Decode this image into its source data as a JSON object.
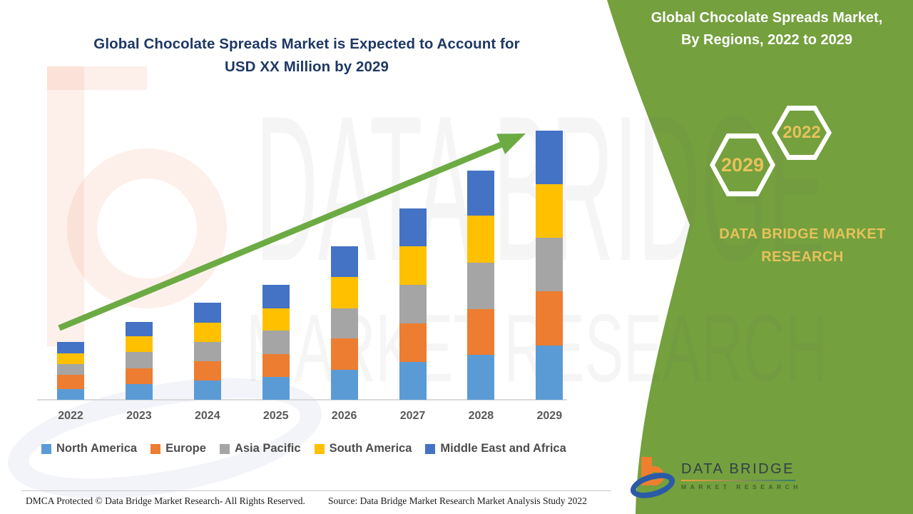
{
  "title": {
    "line1": "Global Chocolate Spreads Market is Expected to Account for",
    "line2": "USD XX Million by 2029"
  },
  "side_panel": {
    "heading_line1": "Global Chocolate Spreads Market,",
    "heading_line2": "By Regions, 2022 to 2029",
    "hexagon_front_label": "2029",
    "hexagon_back_label": "2022",
    "brand_line1": "DATA BRIDGE MARKET",
    "brand_line2": "RESEARCH"
  },
  "watermark": {
    "line1": "DATA BRIDGE",
    "line2": "MARKET RESEARCH"
  },
  "colors": {
    "panel_green": "#74A03E",
    "gold": "#E6C25B",
    "title_navy": "#1F3864",
    "arrow_green": "#6CAB44",
    "axis_text": "#595959",
    "white": "#ffffff"
  },
  "chart_data": {
    "type": "bar",
    "stacked": true,
    "title": "Global Chocolate Spreads Market is Expected to Account for USD XX Million by 2029",
    "subtitle": "Global Chocolate Spreads Market, By Regions, 2022 to 2029",
    "categories": [
      "2022",
      "2023",
      "2024",
      "2025",
      "2026",
      "2027",
      "2028",
      "2029"
    ],
    "series": [
      {
        "name": "North America",
        "color": "#5B9BD5",
        "values": [
          15,
          22,
          27,
          32,
          42,
          53,
          63,
          76
        ]
      },
      {
        "name": "Europe",
        "color": "#ED7D31",
        "values": [
          20,
          22,
          27,
          32,
          44,
          54,
          64,
          76
        ]
      },
      {
        "name": "Asia Pacific",
        "color": "#A5A5A5",
        "values": [
          15,
          23,
          27,
          33,
          42,
          54,
          65,
          75
        ]
      },
      {
        "name": "South America",
        "color": "#FFC000",
        "values": [
          15,
          22,
          27,
          31,
          44,
          54,
          66,
          75
        ]
      },
      {
        "name": "Middle East and Africa",
        "color": "#4472C4",
        "values": [
          16,
          20,
          28,
          33,
          43,
          53,
          63,
          75
        ]
      }
    ],
    "totals_estimated": [
      81,
      109,
      136,
      161,
      215,
      268,
      321,
      377
    ],
    "xlabel": "",
    "ylabel": "",
    "value_note": "Y axis not shown; values are relative estimates (market value is USD XX Million)",
    "gridlines": false,
    "y_axis_visible": false,
    "legend_position": "bottom",
    "annotation": "green upward trend arrow from 2022 toward 2029"
  },
  "footer": {
    "dmca": "DMCA Protected © Data Bridge Market Research- All Rights Reserved.",
    "source": "Source: Data Bridge Market Research Market Analysis Study 2022"
  },
  "logo": {
    "title": "DATA BRIDGE",
    "subtitle": "MARKET RESEARCH"
  }
}
